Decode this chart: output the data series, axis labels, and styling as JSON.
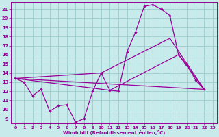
{
  "xlabel": "Windchill (Refroidissement éolien,°C)",
  "background_color": "#c8eaea",
  "grid_color": "#99cccc",
  "line_color": "#990099",
  "xlim": [
    -0.5,
    23.5
  ],
  "ylim": [
    8.5,
    21.8
  ],
  "xticks": [
    0,
    1,
    2,
    3,
    4,
    5,
    6,
    7,
    8,
    9,
    10,
    11,
    12,
    13,
    14,
    15,
    16,
    17,
    18,
    19,
    20,
    21,
    22,
    23
  ],
  "yticks": [
    9,
    10,
    11,
    12,
    13,
    14,
    15,
    16,
    17,
    18,
    19,
    20,
    21
  ],
  "curve_main_x": [
    0,
    1,
    2,
    3,
    4,
    5,
    6,
    7,
    8,
    9,
    10,
    11,
    12,
    13,
    14,
    15,
    16,
    17,
    18,
    19,
    20,
    21,
    22
  ],
  "curve_main_y": [
    13.4,
    13.0,
    11.5,
    12.2,
    9.8,
    10.4,
    10.5,
    8.6,
    9.0,
    12.0,
    14.0,
    12.1,
    12.0,
    16.3,
    18.5,
    21.3,
    21.5,
    21.0,
    20.3,
    16.0,
    14.9,
    13.2,
    12.2
  ],
  "line1_x": [
    0,
    22
  ],
  "line1_y": [
    13.4,
    12.2
  ],
  "line2_x": [
    0,
    11,
    19,
    22
  ],
  "line2_y": [
    13.4,
    12.1,
    16.0,
    12.2
  ],
  "line3_x": [
    0,
    10,
    18,
    22
  ],
  "line3_y": [
    13.4,
    14.0,
    17.8,
    12.2
  ]
}
